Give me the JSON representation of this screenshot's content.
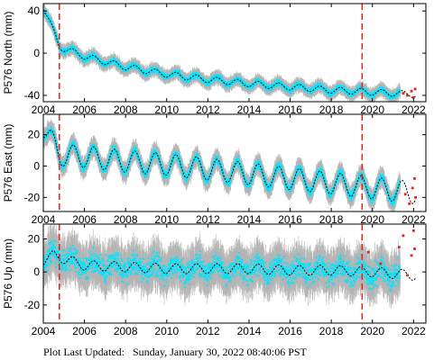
{
  "footer": {
    "label": "Plot Last Updated:",
    "timestamp": "Sunday, January 30, 2022 08:40:06 PST"
  },
  "colors": {
    "errorbar": "#b5b5b5",
    "data": "#00e5ff",
    "model": "#000000",
    "recent": "#e8221d",
    "event_line": "#e8221d"
  },
  "chart_data": [
    {
      "type": "scatter",
      "ylabel": "P576 North (mm)",
      "xlim": [
        2004,
        2022.6
      ],
      "ylim": [
        -46,
        47
      ],
      "xticks": [
        2004,
        2006,
        2008,
        2010,
        2012,
        2014,
        2016,
        2018,
        2020,
        2022
      ],
      "yticks": [
        -40,
        0,
        40
      ],
      "event_lines": [
        2004.78,
        2019.5
      ],
      "model": {
        "x": [
          2004.0,
          2004.8,
          2006,
          2008,
          2010,
          2012,
          2014,
          2016,
          2018,
          2020,
          2022
        ],
        "y": [
          44,
          6,
          -3,
          -13,
          -20,
          -25,
          -29,
          -32,
          -35,
          -37,
          -39
        ]
      },
      "seasonal_amplitude": 3,
      "scatter_spread": 4,
      "recent_points": {
        "x": [
          2021.5,
          2021.7,
          2021.9,
          2022.0,
          2022.08
        ],
        "y": [
          -38,
          -40,
          -36,
          -42,
          -34
        ]
      }
    },
    {
      "type": "scatter",
      "ylabel": "P576 East (mm)",
      "xlim": [
        2004,
        2022.6
      ],
      "ylim": [
        -29,
        33
      ],
      "xticks": [
        2004,
        2006,
        2008,
        2010,
        2012,
        2014,
        2016,
        2018,
        2020,
        2022
      ],
      "yticks": [
        -20,
        0,
        20
      ],
      "event_lines": [
        2004.78,
        2019.5
      ],
      "model": {
        "x": [
          2004.0,
          2004.8,
          2006,
          2008,
          2010,
          2012,
          2014,
          2016,
          2018,
          2020,
          2022
        ],
        "y": [
          25,
          7,
          6,
          3,
          1,
          -2,
          -5,
          -8,
          -11,
          -14,
          -17
        ]
      },
      "seasonal_amplitude": 7,
      "scatter_spread": 4,
      "recent_points": {
        "x": [
          2021.6,
          2021.8,
          2021.95,
          2022.05,
          2022.1
        ],
        "y": [
          -18,
          -24,
          -14,
          -8,
          -20
        ]
      }
    },
    {
      "type": "scatter",
      "ylabel": "P576 Up (mm)",
      "xlim": [
        2004,
        2022.6
      ],
      "ylim": [
        -31,
        29
      ],
      "xticks": [
        2004,
        2006,
        2008,
        2010,
        2012,
        2014,
        2016,
        2018,
        2020,
        2022
      ],
      "yticks": [
        -20,
        0,
        20
      ],
      "event_lines": [
        2004.78,
        2019.5
      ],
      "model": {
        "x": [
          2004.0,
          2004.5,
          2006,
          2008,
          2010,
          2012,
          2014,
          2016,
          2018,
          2020,
          2022
        ],
        "y": [
          7,
          10,
          4,
          3,
          2,
          2,
          2,
          1,
          1,
          0,
          -2
        ]
      },
      "seasonal_amplitude": 3,
      "scatter_spread": 10,
      "recent_points": {
        "x": [
          2019.8,
          2020.4,
          2021.3,
          2021.5,
          2021.7,
          2021.9,
          2022.0,
          2022.05
        ],
        "y": [
          12,
          5,
          15,
          22,
          -2,
          10,
          25,
          14
        ]
      }
    }
  ]
}
